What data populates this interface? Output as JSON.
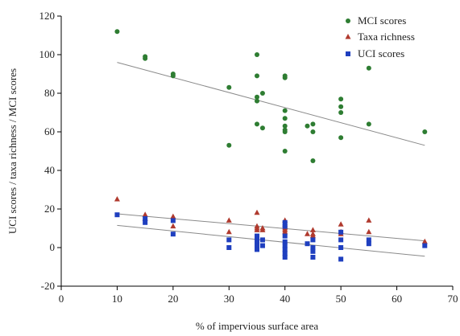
{
  "chart_data": {
    "type": "scatter",
    "xlabel": "% of impervious surface area",
    "ylabel": "UCI scores / taxa richness / MCI scores",
    "xlim": [
      0,
      70
    ],
    "ylim": [
      -20,
      120
    ],
    "x_ticks": [
      "0",
      "10",
      "20",
      "30",
      "40",
      "50",
      "60",
      "70"
    ],
    "y_ticks": [
      "-20",
      "0",
      "20",
      "40",
      "60",
      "80",
      "100",
      "120"
    ],
    "grid": false,
    "legend_position": "top-right",
    "series": [
      {
        "name": "MCI scores",
        "marker": "circle",
        "color": "#2e7d32",
        "points": [
          [
            10,
            112
          ],
          [
            15,
            98
          ],
          [
            15,
            99
          ],
          [
            20,
            89
          ],
          [
            20,
            90
          ],
          [
            30,
            83
          ],
          [
            30,
            53
          ],
          [
            35,
            100
          ],
          [
            35,
            89
          ],
          [
            35,
            78
          ],
          [
            35,
            76
          ],
          [
            35,
            64
          ],
          [
            36,
            80
          ],
          [
            36,
            62
          ],
          [
            40,
            89
          ],
          [
            40,
            88
          ],
          [
            40,
            71
          ],
          [
            40,
            67
          ],
          [
            40,
            63
          ],
          [
            40,
            61
          ],
          [
            40,
            60
          ],
          [
            40,
            50
          ],
          [
            44,
            63
          ],
          [
            45,
            64
          ],
          [
            45,
            60
          ],
          [
            45,
            45
          ],
          [
            50,
            77
          ],
          [
            50,
            73
          ],
          [
            50,
            70
          ],
          [
            50,
            57
          ],
          [
            55,
            93
          ],
          [
            55,
            64
          ],
          [
            65,
            60
          ]
        ]
      },
      {
        "name": "Taxa richness",
        "marker": "triangle",
        "color": "#b03a2e",
        "points": [
          [
            10,
            25
          ],
          [
            15,
            17
          ],
          [
            15,
            15
          ],
          [
            20,
            16
          ],
          [
            20,
            11
          ],
          [
            30,
            14
          ],
          [
            30,
            8
          ],
          [
            35,
            18
          ],
          [
            35,
            11
          ],
          [
            35,
            10
          ],
          [
            35,
            9
          ],
          [
            36,
            10
          ],
          [
            36,
            9
          ],
          [
            40,
            14
          ],
          [
            40,
            12
          ],
          [
            40,
            11
          ],
          [
            40,
            10
          ],
          [
            40,
            9
          ],
          [
            40,
            8
          ],
          [
            44,
            7
          ],
          [
            45,
            9
          ],
          [
            45,
            7
          ],
          [
            45,
            6
          ],
          [
            50,
            12
          ],
          [
            50,
            8
          ],
          [
            50,
            7
          ],
          [
            55,
            14
          ],
          [
            55,
            8
          ],
          [
            65,
            3
          ]
        ]
      },
      {
        "name": "UCI scores",
        "marker": "square",
        "color": "#1f3fbf",
        "points": [
          [
            10,
            17
          ],
          [
            15,
            15
          ],
          [
            15,
            13
          ],
          [
            20,
            14
          ],
          [
            20,
            7
          ],
          [
            30,
            4
          ],
          [
            30,
            0
          ],
          [
            35,
            6
          ],
          [
            35,
            5
          ],
          [
            35,
            3
          ],
          [
            35,
            1
          ],
          [
            35,
            -1
          ],
          [
            36,
            4
          ],
          [
            36,
            1
          ],
          [
            40,
            13
          ],
          [
            40,
            11
          ],
          [
            40,
            6
          ],
          [
            40,
            3
          ],
          [
            40,
            1
          ],
          [
            40,
            -1
          ],
          [
            40,
            -3
          ],
          [
            40,
            -5
          ],
          [
            44,
            2
          ],
          [
            45,
            4
          ],
          [
            45,
            0
          ],
          [
            45,
            -2
          ],
          [
            45,
            -5
          ],
          [
            50,
            8
          ],
          [
            50,
            4
          ],
          [
            50,
            0
          ],
          [
            50,
            -6
          ],
          [
            55,
            4
          ],
          [
            55,
            2
          ],
          [
            65,
            1
          ]
        ]
      }
    ],
    "trendlines": [
      {
        "series": "MCI scores",
        "x": [
          10,
          65
        ],
        "y": [
          96,
          53
        ]
      },
      {
        "series": "Taxa richness",
        "x": [
          10,
          65
        ],
        "y": [
          17.5,
          3.5
        ]
      },
      {
        "series": "UCI scores",
        "x": [
          10,
          65
        ],
        "y": [
          11.5,
          -4.5
        ]
      }
    ],
    "trendline_color": "#8a8a8a"
  }
}
